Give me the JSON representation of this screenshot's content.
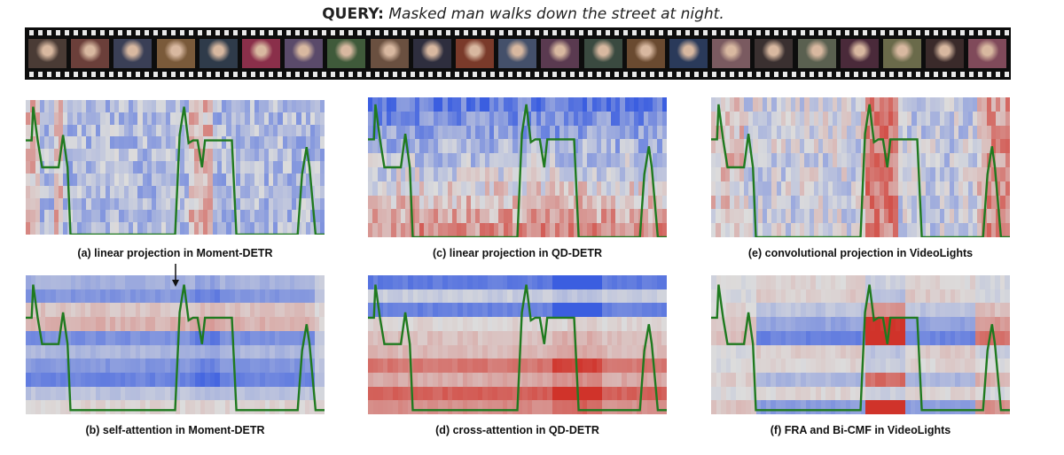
{
  "query": {
    "label": "QUERY:",
    "text": "Masked man walks down the street at night."
  },
  "captions": {
    "a": "(a) linear projection in Moment-DETR",
    "b": "(b) self-attention in Moment-DETR",
    "c": "(c) linear projection in QD-DETR",
    "d": "(d) cross-attention in QD-DETR",
    "e": "(e) convolutional projection in VideoLights",
    "f": "(f) FRA and Bi-CMF in VideoLights"
  },
  "colors": {
    "cool": "#3b5ee0",
    "neutral": "#dcdcdc",
    "warm": "#d0332a",
    "saliency_line": "#1f7a1f",
    "film": "#0d0d0d"
  }
}
